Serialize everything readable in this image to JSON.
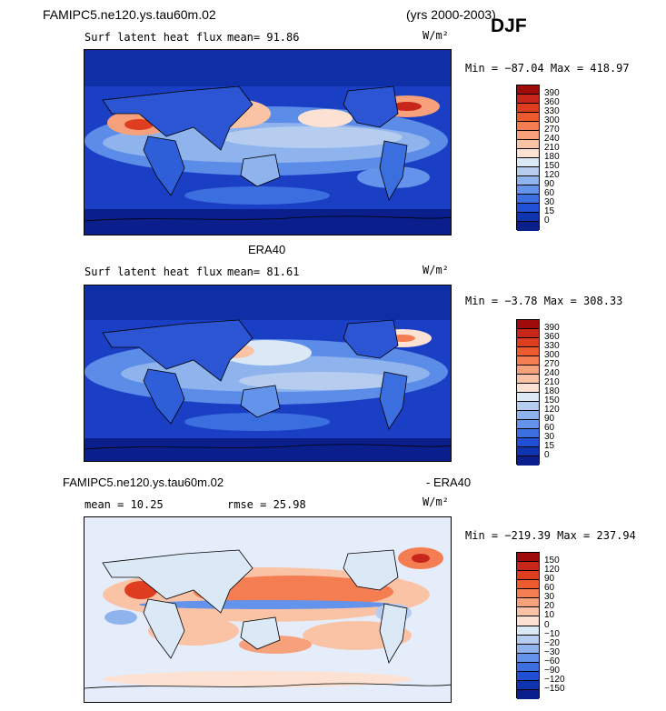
{
  "header": {
    "model_title": "FAMIPC5.ne120.ys.tau60m.02",
    "years": "(yrs 2000-2003)",
    "season": "DJF"
  },
  "panels": [
    {
      "title": "",
      "variable": "Surf latent heat flux",
      "stat_text": "mean=  91.86",
      "units": "W/m²",
      "minmax": "Min = −87.04 Max = 418.97",
      "colorbar": {
        "labels": [
          "390",
          "360",
          "330",
          "300",
          "270",
          "240",
          "210",
          "180",
          "150",
          "120",
          "90",
          "60",
          "30",
          "15",
          "0"
        ],
        "colors": [
          "#9e0b0b",
          "#c8261a",
          "#df3d1f",
          "#ec5a2d",
          "#f47d52",
          "#f7a07c",
          "#fbc3a6",
          "#fde2d3",
          "#dbe8f6",
          "#b6cdf0",
          "#8fb3ec",
          "#6393ea",
          "#3b6fe0",
          "#2050d6",
          "#0f34b0",
          "#0a1f8c"
        ]
      }
    },
    {
      "title": "ERA40",
      "variable": "Surf latent heat flux",
      "stat_text": "mean=  81.61",
      "units": "W/m²",
      "minmax": "Min =  −3.78 Max = 308.33",
      "colorbar": {
        "labels": [
          "390",
          "360",
          "330",
          "300",
          "270",
          "240",
          "210",
          "180",
          "150",
          "120",
          "90",
          "60",
          "30",
          "15",
          "0"
        ],
        "colors": [
          "#9e0b0b",
          "#c8261a",
          "#df3d1f",
          "#ec5a2d",
          "#f47d52",
          "#f7a07c",
          "#fbc3a6",
          "#fde2d3",
          "#dbe8f6",
          "#b6cdf0",
          "#8fb3ec",
          "#6393ea",
          "#3b6fe0",
          "#2050d6",
          "#0f34b0",
          "#0a1f8c"
        ]
      }
    },
    {
      "title_left": "FAMIPC5.ne120.ys.tau60m.02",
      "title_right": "- ERA40",
      "stat_text": "mean =  10.25",
      "rmse_text": "rmse =  25.98",
      "units": "W/m²",
      "minmax": "Min = −219.39 Max = 237.94",
      "colorbar": {
        "labels": [
          "150",
          "120",
          "90",
          "60",
          "30",
          "20",
          "10",
          "0",
          "−10",
          "−20",
          "−30",
          "−60",
          "−90",
          "−120",
          "−150"
        ],
        "colors": [
          "#9e0b0b",
          "#c8261a",
          "#df3d1f",
          "#ec5a2d",
          "#f47d52",
          "#f7a07c",
          "#fbc3a6",
          "#fde2d3",
          "#dbe8f6",
          "#b6cdf0",
          "#8fb3ec",
          "#6393ea",
          "#3b6fe0",
          "#2050d6",
          "#0f34b0",
          "#0a1f8c"
        ]
      }
    }
  ]
}
